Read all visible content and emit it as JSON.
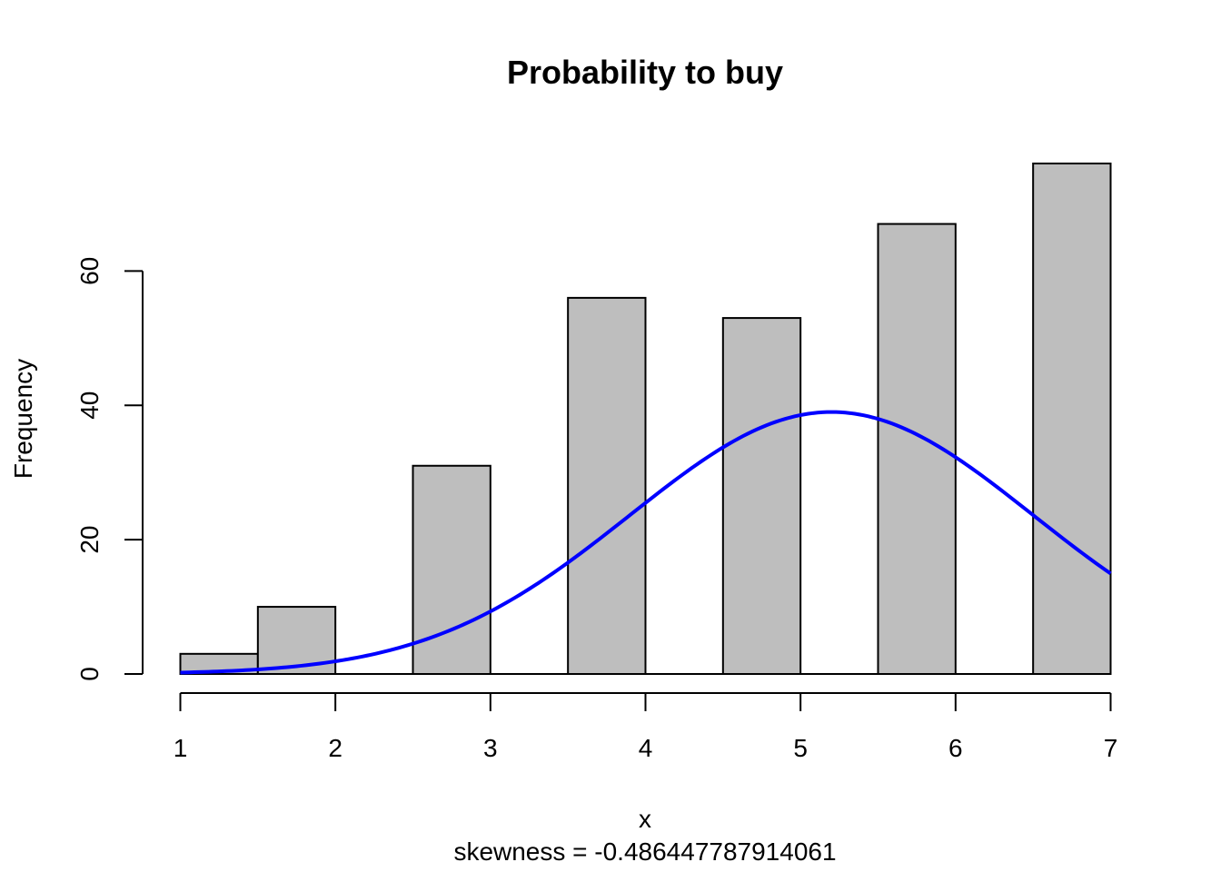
{
  "chart_data": {
    "type": "bar",
    "title": "Probability to buy",
    "xlabel": "x",
    "ylabel": "Frequency",
    "subtitle": "skewness = -0.486447787914061",
    "bins": [
      {
        "x0": 1.0,
        "x1": 1.5,
        "value": 3
      },
      {
        "x0": 1.5,
        "x1": 2.0,
        "value": 10
      },
      {
        "x0": 2.5,
        "x1": 3.0,
        "value": 31
      },
      {
        "x0": 3.5,
        "x1": 4.0,
        "value": 56
      },
      {
        "x0": 4.5,
        "x1": 5.0,
        "value": 53
      },
      {
        "x0": 5.5,
        "x1": 6.0,
        "value": 67
      },
      {
        "x0": 6.5,
        "x1": 7.0,
        "value": 76
      }
    ],
    "xlim": [
      1,
      7
    ],
    "ylim": [
      0,
      76
    ],
    "x_ticks": [
      "1",
      "2",
      "3",
      "4",
      "5",
      "6",
      "7"
    ],
    "y_ticks": [
      "0",
      "20",
      "40",
      "60"
    ],
    "density_curve": {
      "type": "normal",
      "mean": 5.2,
      "peak": 39,
      "sd": 1.3,
      "color": "#0000ff"
    },
    "bar_fill": "#bebebe",
    "grid": false
  }
}
